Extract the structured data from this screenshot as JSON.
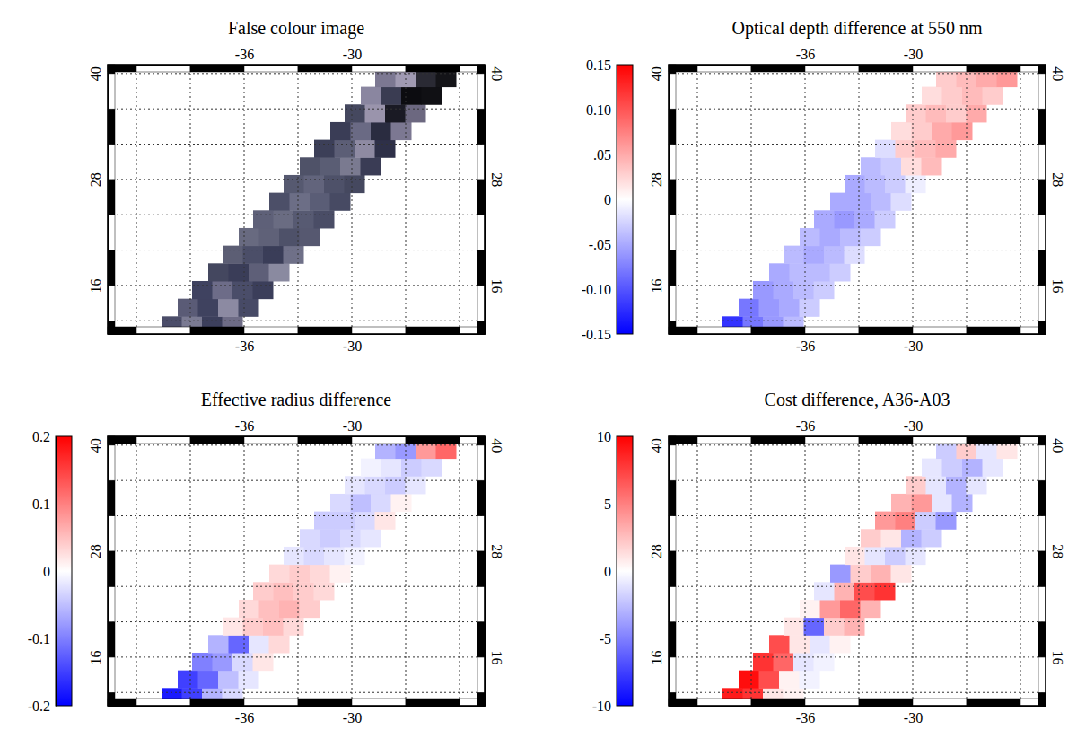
{
  "chart_data": [
    {
      "type": "image",
      "title": "False colour image",
      "xlim": [
        -43.6,
        -22.6
      ],
      "ylim": [
        10.5,
        41
      ],
      "xticks": [
        -36,
        -30
      ],
      "yticks": [
        16,
        28,
        40
      ],
      "xgrid": [
        -42,
        -39,
        -36,
        -33,
        -30,
        -27,
        -24
      ],
      "ygrid": [
        12,
        16,
        20,
        24,
        28,
        32,
        36,
        40
      ],
      "grid": true,
      "rows": [
        {
          "lat": [
            10.5,
            12.5
          ],
          "lon": [
            -40.6,
            -36.1
          ],
          "colors": [
            "#4b4d69",
            "#7a7a92",
            "#3c3f5c",
            "#6e6c86"
          ]
        },
        {
          "lat": [
            12.5,
            14.5
          ],
          "lon": [
            -39.7,
            -35.2
          ],
          "colors": [
            "#5a5b76",
            "#3f425f",
            "#8c8aa2",
            "#474a66"
          ]
        },
        {
          "lat": [
            14.5,
            16.5
          ],
          "lon": [
            -38.9,
            -34.4
          ],
          "colors": [
            "#3f4260",
            "#6d6c88",
            "#4a4d69",
            "#3b3e5a"
          ]
        },
        {
          "lat": [
            16.5,
            18.5
          ],
          "lon": [
            -38.0,
            -33.5
          ],
          "colors": [
            "#44475f",
            "#3a3d58",
            "#5e5f78",
            "#8a8aa0"
          ]
        },
        {
          "lat": [
            18.5,
            20.5
          ],
          "lon": [
            -37.2,
            -32.7
          ],
          "colors": [
            "#5c5e74",
            "#4b4e68",
            "#3a3d58",
            "#6f7088"
          ]
        },
        {
          "lat": [
            20.5,
            22.5
          ],
          "lon": [
            -36.3,
            -31.8
          ],
          "colors": [
            "#686a80",
            "#5f6178",
            "#4e5169",
            "#565870"
          ]
        },
        {
          "lat": [
            22.5,
            24.5
          ],
          "lon": [
            -35.5,
            -31.0
          ],
          "colors": [
            "#5e6078",
            "#6a6c82",
            "#575a72",
            "#4a4d66"
          ]
        },
        {
          "lat": [
            24.5,
            26.5
          ],
          "lon": [
            -34.6,
            -30.1
          ],
          "colors": [
            "#4c4f68",
            "#6c6e86",
            "#5a5d76",
            "#474a63"
          ]
        },
        {
          "lat": [
            26.5,
            28.5
          ],
          "lon": [
            -33.8,
            -29.3
          ],
          "colors": [
            "#565970",
            "#62647c",
            "#4e5169",
            "#45485f"
          ]
        },
        {
          "lat": [
            28.5,
            30.5
          ],
          "lon": [
            -32.9,
            -28.4
          ],
          "colors": [
            "#4f5268",
            "#5a5d74",
            "#7a7a90",
            "#3a3c55"
          ]
        },
        {
          "lat": [
            30.5,
            32.5
          ],
          "lon": [
            -32.1,
            -27.6
          ],
          "colors": [
            "#3c3f58",
            "#5c5e76",
            "#8e8aa2",
            "#2e3048"
          ]
        },
        {
          "lat": [
            32.5,
            34.5
          ],
          "lon": [
            -31.2,
            -26.7
          ],
          "colors": [
            "#3a3d56",
            "#6a6a84",
            "#2a2c40",
            "#7c7892"
          ]
        },
        {
          "lat": [
            34.5,
            36.5
          ],
          "lon": [
            -30.4,
            -25.9
          ],
          "colors": [
            "#45485f",
            "#9a94ac",
            "#1a1a24",
            "#6c6880"
          ]
        },
        {
          "lat": [
            36.5,
            38.5
          ],
          "lon": [
            -29.5,
            -25.0
          ],
          "colors": [
            "#8a86a0",
            "#3a3c52",
            "#0c0c10",
            "#101014"
          ]
        },
        {
          "lat": [
            38.5,
            40.5
          ],
          "lon": [
            -28.7,
            -24.2
          ],
          "colors": [
            "#7c7892",
            "#a09ab2",
            "#2a2a34",
            "#141418"
          ]
        }
      ]
    },
    {
      "type": "heatmap",
      "title": "Optical depth difference at 550 nm",
      "xlim": [
        -43.6,
        -22.6
      ],
      "ylim": [
        10.5,
        41
      ],
      "xticks": [
        -36,
        -30
      ],
      "yticks": [
        16,
        28,
        40
      ],
      "xgrid": [
        -42,
        -39,
        -36,
        -33,
        -30,
        -27,
        -24
      ],
      "ygrid": [
        12,
        16,
        20,
        24,
        28,
        32,
        36,
        40
      ],
      "grid": true,
      "colorbar": {
        "range": [
          -0.15,
          0.15
        ],
        "ticks": [
          -0.15,
          {
            "value": -0.1,
            "label": "-0.10"
          },
          {
            "value": -0.05,
            "label": "-.05"
          },
          0,
          {
            "value": 0.05,
            "label": ".05"
          },
          {
            "value": 0.1,
            "label": "0.10"
          },
          0.15
        ]
      },
      "rows": [
        {
          "lat": [
            10.5,
            12.5
          ],
          "lon": [
            -40.6,
            -36.1
          ],
          "values": [
            -0.12,
            -0.08,
            -0.06,
            -0.04
          ]
        },
        {
          "lat": [
            12.5,
            14.5
          ],
          "lon": [
            -39.7,
            -35.2
          ],
          "values": [
            -0.08,
            -0.06,
            -0.05,
            -0.03
          ]
        },
        {
          "lat": [
            14.5,
            16.5
          ],
          "lon": [
            -38.9,
            -34.4
          ],
          "values": [
            -0.06,
            -0.05,
            -0.04,
            -0.03
          ]
        },
        {
          "lat": [
            16.5,
            18.5
          ],
          "lon": [
            -38.0,
            -33.5
          ],
          "values": [
            -0.05,
            -0.04,
            -0.04,
            -0.03
          ]
        },
        {
          "lat": [
            18.5,
            20.5
          ],
          "lon": [
            -37.2,
            -32.7
          ],
          "values": [
            -0.04,
            -0.05,
            -0.04,
            -0.02
          ]
        },
        {
          "lat": [
            20.5,
            22.5
          ],
          "lon": [
            -36.3,
            -31.8
          ],
          "values": [
            -0.04,
            -0.05,
            -0.04,
            -0.03
          ]
        },
        {
          "lat": [
            22.5,
            24.5
          ],
          "lon": [
            -35.5,
            -31.0
          ],
          "values": [
            -0.05,
            -0.06,
            -0.05,
            -0.03
          ]
        },
        {
          "lat": [
            24.5,
            26.5
          ],
          "lon": [
            -34.6,
            -30.1
          ],
          "values": [
            -0.05,
            -0.05,
            -0.04,
            -0.02
          ]
        },
        {
          "lat": [
            26.5,
            28.5
          ],
          "lon": [
            -33.8,
            -29.3
          ],
          "values": [
            -0.05,
            -0.04,
            -0.03,
            -0.01
          ]
        },
        {
          "lat": [
            28.5,
            30.5
          ],
          "lon": [
            -32.9,
            -28.4
          ],
          "values": [
            -0.04,
            -0.03,
            0.02,
            0.04
          ]
        },
        {
          "lat": [
            30.5,
            32.5
          ],
          "lon": [
            -32.1,
            -27.6
          ],
          "values": [
            -0.02,
            0.03,
            0.04,
            0.05
          ]
        },
        {
          "lat": [
            32.5,
            34.5
          ],
          "lon": [
            -31.2,
            -26.7
          ],
          "values": [
            0.02,
            0.03,
            0.05,
            0.06
          ]
        },
        {
          "lat": [
            34.5,
            36.5
          ],
          "lon": [
            -30.4,
            -25.9
          ],
          "values": [
            0.03,
            0.04,
            0.03,
            0.05
          ]
        },
        {
          "lat": [
            36.5,
            38.5
          ],
          "lon": [
            -29.5,
            -25.0
          ],
          "values": [
            0.02,
            0.03,
            0.04,
            0.03
          ]
        },
        {
          "lat": [
            38.5,
            40.5
          ],
          "lon": [
            -28.7,
            -24.2
          ],
          "values": [
            0.03,
            0.04,
            0.05,
            0.06
          ]
        }
      ]
    },
    {
      "type": "heatmap",
      "title": "Effective radius difference",
      "xlim": [
        -43.6,
        -22.6
      ],
      "ylim": [
        10.5,
        41
      ],
      "xticks": [
        -36,
        -30
      ],
      "yticks": [
        16,
        28,
        40
      ],
      "xgrid": [
        -42,
        -39,
        -36,
        -33,
        -30,
        -27,
        -24
      ],
      "ygrid": [
        12,
        16,
        20,
        24,
        28,
        32,
        36,
        40
      ],
      "grid": true,
      "colorbar": {
        "range": [
          -0.2,
          0.2
        ],
        "ticks": [
          -0.2,
          -0.1,
          0,
          0.1,
          0.2
        ]
      },
      "rows": [
        {
          "lat": [
            10.5,
            12.5
          ],
          "lon": [
            -40.6,
            -36.1
          ],
          "values": [
            -0.18,
            -0.15,
            -0.06,
            -0.03
          ]
        },
        {
          "lat": [
            12.5,
            14.5
          ],
          "lon": [
            -39.7,
            -35.2
          ],
          "values": [
            -0.15,
            -0.12,
            -0.05,
            -0.02
          ]
        },
        {
          "lat": [
            14.5,
            16.5
          ],
          "lon": [
            -38.9,
            -34.4
          ],
          "values": [
            -0.1,
            -0.08,
            -0.03,
            0.02
          ]
        },
        {
          "lat": [
            16.5,
            18.5
          ],
          "lon": [
            -38.0,
            -33.5
          ],
          "values": [
            -0.06,
            -0.12,
            -0.02,
            0.03
          ]
        },
        {
          "lat": [
            18.5,
            20.5
          ],
          "lon": [
            -37.2,
            -32.7
          ],
          "values": [
            0.02,
            0.04,
            0.05,
            0.03
          ]
        },
        {
          "lat": [
            20.5,
            22.5
          ],
          "lon": [
            -36.3,
            -31.8
          ],
          "values": [
            0.03,
            0.05,
            0.06,
            0.04
          ]
        },
        {
          "lat": [
            22.5,
            24.5
          ],
          "lon": [
            -35.5,
            -31.0
          ],
          "values": [
            0.04,
            0.05,
            0.04,
            0.03
          ]
        },
        {
          "lat": [
            24.5,
            26.5
          ],
          "lon": [
            -34.6,
            -30.1
          ],
          "values": [
            0.03,
            0.04,
            0.03,
            0.01
          ]
        },
        {
          "lat": [
            26.5,
            28.5
          ],
          "lon": [
            -33.8,
            -29.3
          ],
          "values": [
            -0.02,
            -0.03,
            -0.02,
            -0.01
          ]
        },
        {
          "lat": [
            28.5,
            30.5
          ],
          "lon": [
            -32.9,
            -28.4
          ],
          "values": [
            -0.03,
            -0.04,
            -0.03,
            -0.02
          ]
        },
        {
          "lat": [
            30.5,
            32.5
          ],
          "lon": [
            -32.1,
            -27.6
          ],
          "values": [
            -0.04,
            -0.04,
            -0.03,
            0.02
          ]
        },
        {
          "lat": [
            32.5,
            34.5
          ],
          "lon": [
            -31.2,
            -26.7
          ],
          "values": [
            -0.03,
            -0.05,
            -0.03,
            0.01
          ]
        },
        {
          "lat": [
            34.5,
            36.5
          ],
          "lon": [
            -30.4,
            -25.9
          ],
          "values": [
            -0.02,
            -0.03,
            -0.04,
            -0.02
          ]
        },
        {
          "lat": [
            36.5,
            38.5
          ],
          "lon": [
            -29.5,
            -25.0
          ],
          "values": [
            -0.01,
            -0.02,
            -0.04,
            -0.03
          ]
        },
        {
          "lat": [
            38.5,
            40.5
          ],
          "lon": [
            -28.7,
            -24.2
          ],
          "values": [
            -0.06,
            -0.08,
            0.08,
            0.12
          ]
        }
      ]
    },
    {
      "type": "heatmap",
      "title": "Cost difference, A36-A03",
      "xlim": [
        -43.6,
        -22.6
      ],
      "ylim": [
        10.5,
        41
      ],
      "xticks": [
        -36,
        -30
      ],
      "yticks": [
        16,
        28,
        40
      ],
      "xgrid": [
        -42,
        -39,
        -36,
        -33,
        -30,
        -27,
        -24
      ],
      "ygrid": [
        12,
        16,
        20,
        24,
        28,
        32,
        36,
        40
      ],
      "grid": true,
      "colorbar": {
        "range": [
          -10,
          10
        ],
        "ticks": [
          -10,
          -5,
          0,
          5,
          10
        ]
      },
      "rows": [
        {
          "lat": [
            10.5,
            12.5
          ],
          "lon": [
            -40.6,
            -36.1
          ],
          "values": [
            9,
            8,
            1,
            0.5
          ]
        },
        {
          "lat": [
            12.5,
            14.5
          ],
          "lon": [
            -39.7,
            -35.2
          ],
          "values": [
            9.5,
            7,
            0.5,
            -0.5
          ]
        },
        {
          "lat": [
            14.5,
            16.5
          ],
          "lon": [
            -38.9,
            -34.4
          ],
          "values": [
            8,
            6,
            -1,
            -0.5
          ]
        },
        {
          "lat": [
            16.5,
            18.5
          ],
          "lon": [
            -38.0,
            -33.5
          ],
          "values": [
            7,
            1,
            -1,
            0.5
          ]
        },
        {
          "lat": [
            18.5,
            20.5
          ],
          "lon": [
            -37.2,
            -32.7
          ],
          "values": [
            1,
            -6,
            2,
            3
          ]
        },
        {
          "lat": [
            20.5,
            22.5
          ],
          "lon": [
            -36.3,
            -31.8
          ],
          "values": [
            0.5,
            4,
            6,
            3
          ]
        },
        {
          "lat": [
            22.5,
            24.5
          ],
          "lon": [
            -35.5,
            -31.0
          ],
          "values": [
            -1,
            3,
            7,
            8
          ]
        },
        {
          "lat": [
            24.5,
            26.5
          ],
          "lon": [
            -34.6,
            -30.1
          ],
          "values": [
            -4,
            2,
            3,
            1
          ]
        },
        {
          "lat": [
            26.5,
            28.5
          ],
          "lon": [
            -33.8,
            -29.3
          ],
          "values": [
            1,
            -1,
            -2,
            -1
          ]
        },
        {
          "lat": [
            28.5,
            30.5
          ],
          "lon": [
            -32.9,
            -28.4
          ],
          "values": [
            2,
            1,
            -3,
            -2
          ]
        },
        {
          "lat": [
            30.5,
            32.5
          ],
          "lon": [
            -32.1,
            -27.6
          ],
          "values": [
            4,
            5,
            -2,
            -4
          ]
        },
        {
          "lat": [
            32.5,
            34.5
          ],
          "lon": [
            -31.2,
            -26.7
          ],
          "values": [
            3,
            4,
            -1,
            -3
          ]
        },
        {
          "lat": [
            34.5,
            36.5
          ],
          "lon": [
            -30.4,
            -25.9
          ],
          "values": [
            2,
            -1,
            -3,
            -1
          ]
        },
        {
          "lat": [
            36.5,
            38.5
          ],
          "lon": [
            -29.5,
            -25.0
          ],
          "values": [
            -1,
            -2,
            -3,
            -1
          ]
        },
        {
          "lat": [
            38.5,
            40.5
          ],
          "lon": [
            -28.7,
            -24.2
          ],
          "values": [
            -2,
            2,
            -1,
            1
          ]
        }
      ]
    }
  ]
}
